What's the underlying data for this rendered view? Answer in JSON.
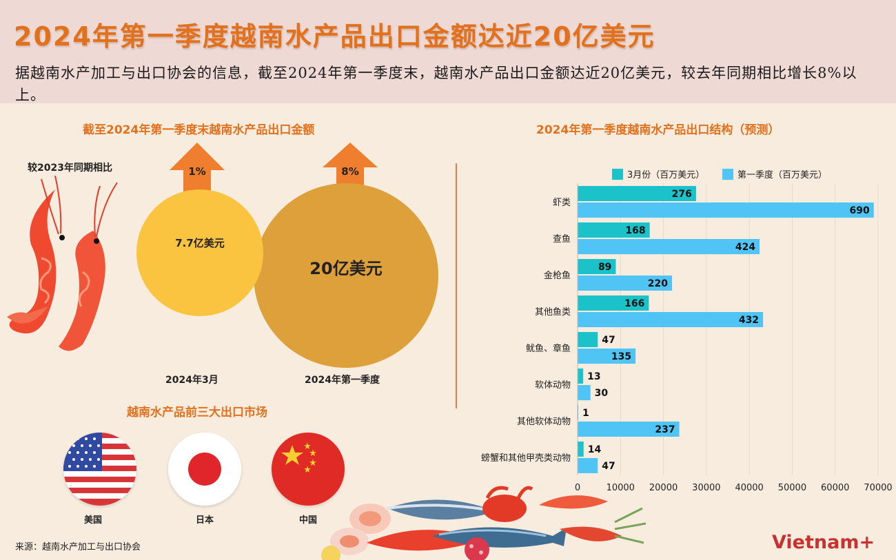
{
  "title": "2024年第一季度越南水产品出口金额达近20亿美元",
  "intro": "据越南水产加工与出口协会的信息，截至2024年第一季度末，越南水产品出口金额达近20亿美元，较去年同期相比增长8%以上。",
  "left_section": {
    "title": "截至2024年第一季度末越南水产品出口金额",
    "compare_label": "较2023年同期相比",
    "items": [
      {
        "period": "2024年3月",
        "value": "7.7亿美元",
        "growth": "1%"
      },
      {
        "period": "2024年第一季度",
        "value": "20亿美元",
        "growth": "8%"
      }
    ]
  },
  "markets": {
    "title": "越南水产品前三大出口市场",
    "countries": [
      {
        "name": "美国",
        "flag": "us-flag-icon"
      },
      {
        "name": "日本",
        "flag": "japan-flag-icon"
      },
      {
        "name": "中国",
        "flag": "china-flag-icon"
      }
    ]
  },
  "source": "来源：越南水产加工与出口协会",
  "logo": "Vietnam+",
  "colors": {
    "title": "#e2711d",
    "march_series": "#1cc2c9",
    "quarter_series": "#4fc4f5",
    "circle_small": "#fbc440",
    "circle_large": "#dea03a",
    "arrow": "#ef7f2e",
    "logo": "#c8322e"
  },
  "chart_data": {
    "type": "bar",
    "orientation": "horizontal",
    "title": "2024年第一季度越南水产品出口结构（预测）",
    "categories": [
      "虾类",
      "查鱼",
      "金枪鱼",
      "其他鱼类",
      "鱿鱼、章鱼",
      "软体动物",
      "其他软体动物",
      "螃蟹和其他甲壳类动物"
    ],
    "series": [
      {
        "name": "3月份（百万美元）",
        "labels": [
          "276",
          "168",
          "89",
          "166",
          "47",
          "13",
          "1",
          "14"
        ],
        "values": [
          27600,
          16800,
          8900,
          16600,
          4700,
          1300,
          100,
          1400
        ]
      },
      {
        "name": "第一季度（百万美元）",
        "labels": [
          "690",
          "424",
          "220",
          "432",
          "135",
          "30",
          "237",
          "47"
        ],
        "values": [
          69000,
          42400,
          22000,
          43200,
          13500,
          3000,
          23700,
          4700
        ]
      }
    ],
    "xlim": [
      0,
      70000
    ],
    "xticks": [
      "0",
      "10000",
      "20000",
      "30000",
      "40000",
      "50000",
      "60000",
      "70000"
    ],
    "grid": true,
    "legend": "top"
  }
}
